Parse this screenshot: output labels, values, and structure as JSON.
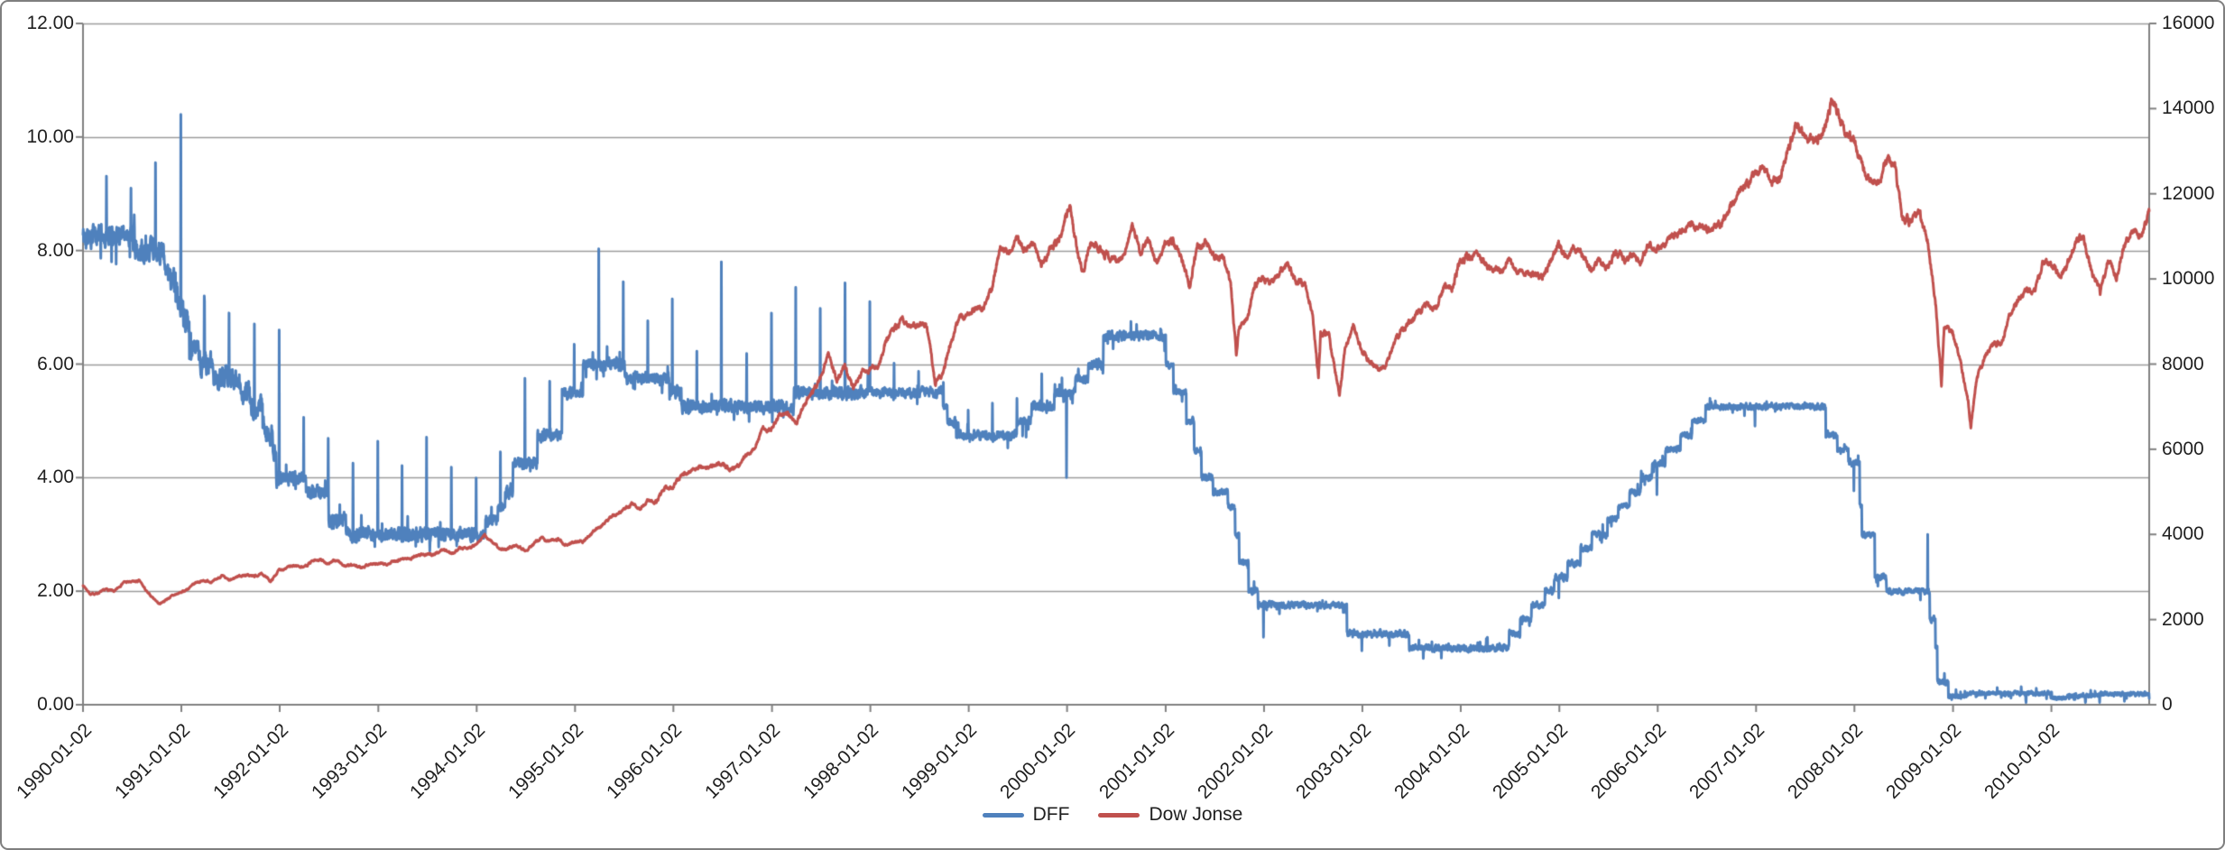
{
  "chart": {
    "background": "#FFFFFF",
    "frame_border_color": "#7F7F7F",
    "gridline_color": "#9B9B9B",
    "axis_color": "#808080",
    "label_color": "#1F1F1F"
  },
  "chart_data": {
    "type": "line",
    "title": "",
    "grid": true,
    "legend_position": "bottom",
    "x_axis": {
      "start": "1990-01-02",
      "end": "2010-12-31",
      "tick_labels": [
        "1990-01-02",
        "1991-01-02",
        "1992-01-02",
        "1993-01-02",
        "1994-01-02",
        "1995-01-02",
        "1996-01-02",
        "1997-01-02",
        "1998-01-02",
        "1999-01-02",
        "2000-01-02",
        "2001-01-02",
        "2002-01-02",
        "2003-01-02",
        "2004-01-02",
        "2005-01-02",
        "2006-01-02",
        "2007-01-02",
        "2008-01-02",
        "2009-01-02",
        "2010-01-02"
      ]
    },
    "y_axis_left": {
      "min": 0,
      "max": 12,
      "step": 2,
      "tick_labels": [
        "12.00",
        "10.00",
        "8.00",
        "6.00",
        "4.00",
        "2.00",
        "0.00"
      ]
    },
    "y_axis_right": {
      "min": 0,
      "max": 16000,
      "step": 2000,
      "tick_labels": [
        "16000",
        "14000",
        "12000",
        "10000",
        "8000",
        "6000",
        "4000",
        "2000",
        "0"
      ]
    },
    "series": [
      {
        "name": "DFF",
        "color": "#4F81BD",
        "axis": "left",
        "kind": "daily-step-with-noise",
        "rate_changes": [
          [
            "1990-01-02",
            8.25
          ],
          [
            "1990-07-13",
            8.0
          ],
          [
            "1990-10-29",
            7.75
          ],
          [
            "1990-11-14",
            7.5
          ],
          [
            "1990-12-07",
            7.25
          ],
          [
            "1990-12-19",
            7.0
          ],
          [
            "1991-01-09",
            6.75
          ],
          [
            "1991-02-01",
            6.25
          ],
          [
            "1991-03-08",
            6.0
          ],
          [
            "1991-04-30",
            5.75
          ],
          [
            "1991-08-06",
            5.5
          ],
          [
            "1991-09-13",
            5.25
          ],
          [
            "1991-10-31",
            5.0
          ],
          [
            "1991-11-06",
            4.75
          ],
          [
            "1991-12-06",
            4.5
          ],
          [
            "1991-12-20",
            4.0
          ],
          [
            "1992-04-09",
            3.75
          ],
          [
            "1992-07-02",
            3.25
          ],
          [
            "1992-09-04",
            3.0
          ],
          [
            "1994-02-04",
            3.25
          ],
          [
            "1994-03-22",
            3.5
          ],
          [
            "1994-04-18",
            3.75
          ],
          [
            "1994-05-17",
            4.25
          ],
          [
            "1994-08-16",
            4.75
          ],
          [
            "1994-11-15",
            5.5
          ],
          [
            "1995-02-01",
            6.0
          ],
          [
            "1995-07-06",
            5.75
          ],
          [
            "1995-12-19",
            5.5
          ],
          [
            "1996-01-31",
            5.25
          ],
          [
            "1997-03-25",
            5.5
          ],
          [
            "1998-09-29",
            5.25
          ],
          [
            "1998-10-15",
            5.0
          ],
          [
            "1998-11-17",
            4.75
          ],
          [
            "1999-06-30",
            5.0
          ],
          [
            "1999-08-24",
            5.25
          ],
          [
            "1999-11-16",
            5.5
          ],
          [
            "2000-02-02",
            5.75
          ],
          [
            "2000-03-21",
            6.0
          ],
          [
            "2000-05-16",
            6.5
          ],
          [
            "2001-01-03",
            6.0
          ],
          [
            "2001-01-31",
            5.5
          ],
          [
            "2001-03-20",
            5.0
          ],
          [
            "2001-04-18",
            4.5
          ],
          [
            "2001-05-15",
            4.0
          ],
          [
            "2001-06-27",
            3.75
          ],
          [
            "2001-08-21",
            3.5
          ],
          [
            "2001-09-17",
            3.0
          ],
          [
            "2001-10-02",
            2.5
          ],
          [
            "2001-11-06",
            2.0
          ],
          [
            "2001-12-11",
            1.75
          ],
          [
            "2002-11-06",
            1.25
          ],
          [
            "2003-06-25",
            1.0
          ],
          [
            "2004-06-30",
            1.25
          ],
          [
            "2004-08-10",
            1.5
          ],
          [
            "2004-09-21",
            1.75
          ],
          [
            "2004-11-10",
            2.0
          ],
          [
            "2004-12-14",
            2.25
          ],
          [
            "2005-02-02",
            2.5
          ],
          [
            "2005-03-22",
            2.75
          ],
          [
            "2005-05-03",
            3.0
          ],
          [
            "2005-06-30",
            3.25
          ],
          [
            "2005-08-09",
            3.5
          ],
          [
            "2005-09-20",
            3.75
          ],
          [
            "2005-11-01",
            4.0
          ],
          [
            "2005-12-13",
            4.25
          ],
          [
            "2006-01-31",
            4.5
          ],
          [
            "2006-03-28",
            4.75
          ],
          [
            "2006-05-10",
            5.0
          ],
          [
            "2006-06-29",
            5.25
          ],
          [
            "2007-09-18",
            4.75
          ],
          [
            "2007-10-31",
            4.5
          ],
          [
            "2007-12-11",
            4.25
          ],
          [
            "2008-01-22",
            3.5
          ],
          [
            "2008-01-30",
            3.0
          ],
          [
            "2008-03-18",
            2.25
          ],
          [
            "2008-04-30",
            2.0
          ],
          [
            "2008-10-08",
            1.5
          ],
          [
            "2008-10-29",
            1.0
          ],
          [
            "2008-11-05",
            0.4
          ],
          [
            "2008-12-16",
            0.15
          ],
          [
            "2009-03-02",
            0.2
          ],
          [
            "2010-01-04",
            0.12
          ],
          [
            "2010-03-01",
            0.16
          ],
          [
            "2010-07-01",
            0.19
          ]
        ],
        "spikes": [
          [
            "1990-06-29",
            9.1
          ],
          [
            "1990-09-28",
            9.55
          ],
          [
            "1990-12-31",
            10.4
          ],
          [
            "1991-03-28",
            7.2
          ],
          [
            "1991-06-28",
            6.9
          ],
          [
            "1991-12-31",
            6.6
          ],
          [
            "1994-12-30",
            6.35
          ],
          [
            "1995-06-30",
            7.45
          ],
          [
            "1995-12-29",
            7.15
          ],
          [
            "1996-06-28",
            7.8
          ],
          [
            "1996-12-31",
            6.9
          ],
          [
            "1997-03-31",
            7.35
          ],
          [
            "1997-12-31",
            7.1
          ],
          [
            "1999-12-31",
            4.0
          ],
          [
            "2001-12-31",
            1.19
          ],
          [
            "2002-12-31",
            0.95
          ],
          [
            "2003-12-31",
            0.94
          ],
          [
            "2008-09-30",
            3.0
          ]
        ],
        "noise_eras": [
          [
            "1990",
            0.16
          ],
          [
            "1992",
            0.1
          ],
          [
            "1994",
            0.09
          ],
          [
            "1998",
            0.07
          ],
          [
            "2001",
            0.05
          ],
          [
            "2006",
            0.045
          ],
          [
            "2009",
            0.03
          ]
        ],
        "auto_spikes": {
          "quarter_end_1990_1993": [
            0.8,
            1.0
          ],
          "quarter_end_1994_1997": [
            0.9,
            1.4
          ],
          "quarter_end_1998_1999": [
            0.35,
            0.35
          ],
          "year_end_dip_2000_2007": [
            0.25,
            0.35
          ],
          "quarter_end_dip_2009_2010": [
            0.05,
            0.1
          ]
        }
      },
      {
        "name": "Dow Jonse",
        "color": "#C0504D",
        "axis": "right",
        "kind": "daily-interpolated",
        "start": [
          "1990-01-02",
          2810
        ],
        "monthly_closes": {
          "1990": [
            2590,
            2627,
            2707,
            2657,
            2877,
            2881,
            2905,
            2614,
            2452,
            2442,
            2559,
            2634
          ],
          "1991": [
            2736,
            2882,
            2914,
            2888,
            3028,
            2907,
            3025,
            3044,
            3017,
            3069,
            2895,
            3169
          ],
          "1992": [
            3223,
            3268,
            3235,
            3359,
            3397,
            3318,
            3394,
            3257,
            3272,
            3226,
            3305,
            3301
          ],
          "1993": [
            3310,
            3371,
            3435,
            3428,
            3527,
            3516,
            3539,
            3651,
            3555,
            3681,
            3684,
            3754
          ],
          "1994": [
            3978,
            3832,
            3636,
            3682,
            3758,
            3625,
            3765,
            3913,
            3843,
            3908,
            3739,
            3834
          ],
          "1995": [
            3844,
            4011,
            4158,
            4321,
            4465,
            4556,
            4708,
            4610,
            4789,
            4756,
            5075,
            5117
          ],
          "1996": [
            5395,
            5486,
            5587,
            5569,
            5643,
            5655,
            5529,
            5616,
            5882,
            6029,
            6522,
            6448
          ],
          "1997": [
            6813,
            6878,
            6584,
            7009,
            7331,
            7673,
            8223,
            7622,
            7945,
            7442,
            7823,
            7908
          ],
          "1998": [
            7907,
            8546,
            8800,
            9063,
            8900,
            8952,
            8883,
            7539,
            7843,
            8592,
            9117,
            9181
          ],
          "1999": [
            9359,
            9307,
            9786,
            10789,
            10560,
            10971,
            10655,
            10829,
            10337,
            10730,
            10878,
            11497
          ],
          "2000": [
            10940,
            10128,
            10922,
            10734,
            10522,
            10448,
            10522,
            11215,
            10651,
            10971,
            10414,
            10788
          ],
          "2001": [
            10887,
            10495,
            9879,
            10735,
            10912,
            10502,
            10523,
            9950,
            8848,
            9075,
            9852,
            10022
          ],
          "2002": [
            9920,
            10106,
            10404,
            9946,
            9925,
            9243,
            8737,
            8664,
            7592,
            8397,
            8896,
            8342
          ],
          "2003": [
            8054,
            7891,
            7992,
            8480,
            8850,
            8985,
            9234,
            9416,
            9275,
            9801,
            9782,
            10454
          ],
          "2004": [
            10488,
            10584,
            10358,
            10226,
            10188,
            10435,
            10140,
            10174,
            10080,
            10027,
            10428,
            10783
          ],
          "2005": [
            10490,
            10766,
            10504,
            10193,
            10467,
            10275,
            10641,
            10482,
            10569,
            10440,
            10806,
            10718
          ],
          "2006": [
            10865,
            10993,
            11109,
            11367,
            11168,
            11150,
            11186,
            11381,
            11679,
            12080,
            12222,
            12463
          ],
          "2007": [
            12622,
            12269,
            12354,
            13063,
            13628,
            13409,
            13212,
            13358,
            13896,
            13930,
            13372,
            13265
          ],
          "2008": [
            12650,
            12266,
            12263,
            12820,
            12638,
            11350,
            11378,
            11544,
            10851,
            9325,
            8829,
            8776
          ],
          "2009": [
            8001,
            7063,
            7609,
            8168,
            8500,
            8447,
            9172,
            9496,
            9712,
            9713,
            10345,
            10428
          ],
          "2010": [
            10067,
            10325,
            10857,
            11009,
            10137,
            9774,
            10466,
            10015,
            10788,
            11118,
            11006,
            11578
          ]
        },
        "extra_points": [
          [
            "1990-10-11",
            2365
          ],
          [
            "2000-01-14",
            11723
          ],
          [
            "2001-09-21",
            8236
          ],
          [
            "2002-07-23",
            7702
          ],
          [
            "2002-10-09",
            7286
          ],
          [
            "2007-10-09",
            14164
          ],
          [
            "2008-11-20",
            7552
          ],
          [
            "2009-03-09",
            6547
          ],
          [
            "2010-07-02",
            9686
          ]
        ]
      }
    ]
  },
  "legend": {
    "items": [
      {
        "label": "DFF",
        "color": "#4F81BD"
      },
      {
        "label": "Dow Jonse",
        "color": "#C0504D"
      }
    ]
  }
}
